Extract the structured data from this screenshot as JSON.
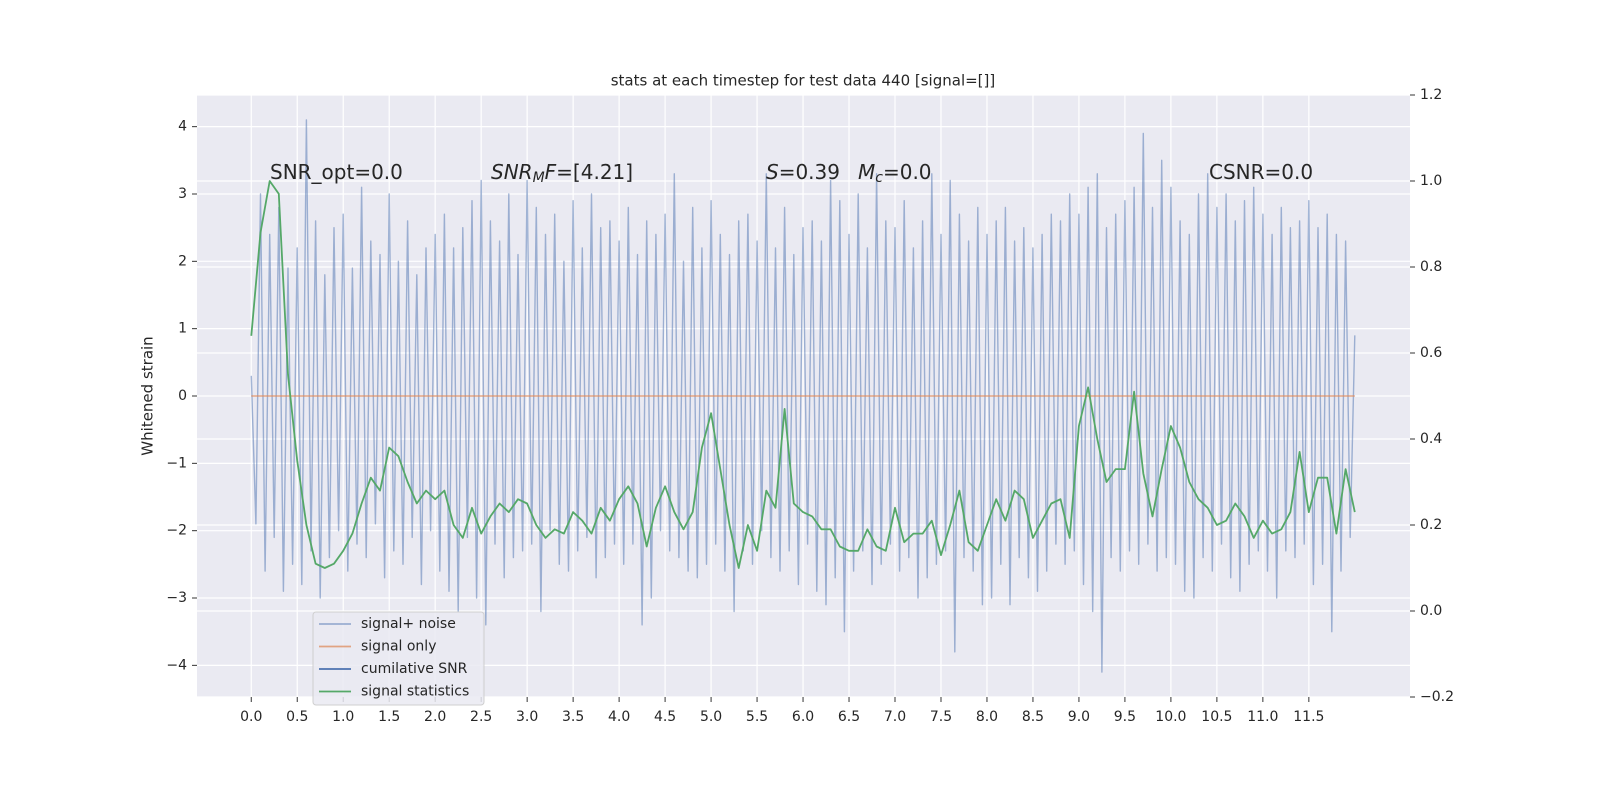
{
  "chart_data": {
    "type": "line",
    "title": "stats at each timestep for test data 440 [signal=[]]",
    "ylabel": "Whitened strain",
    "xlim": [
      -0.59,
      12.6
    ],
    "ylim": [
      -4.47,
      4.47
    ],
    "y2lim": [
      -0.2,
      1.2
    ],
    "xticks": [
      {
        "value": 0,
        "label": "0.0"
      },
      0.5,
      {
        "value": 1,
        "label": "1.0"
      },
      1.5,
      {
        "value": 2,
        "label": "2.0"
      },
      2.5,
      {
        "value": 3,
        "label": "3.0"
      },
      3.5,
      {
        "value": 4,
        "label": "4.0"
      },
      4.5,
      {
        "value": 5,
        "label": "5.0"
      },
      5.5,
      {
        "value": 6,
        "label": "6.0"
      },
      6.5,
      {
        "value": 7,
        "label": "7.0"
      },
      7.5,
      {
        "value": 8,
        "label": "8.0"
      },
      8.5,
      {
        "value": 9,
        "label": "9.0"
      },
      9.5,
      {
        "value": 10,
        "label": "10.0"
      },
      10.5,
      {
        "value": 11,
        "label": "11.0"
      },
      11.5
    ],
    "yticks": [
      {
        "value": -4,
        "label": "−4"
      },
      {
        "value": -3,
        "label": "−3"
      },
      {
        "value": -2,
        "label": "−2"
      },
      {
        "value": -1,
        "label": "−1"
      },
      0,
      1,
      2,
      3,
      4
    ],
    "y2ticks": [
      {
        "value": -0.2,
        "label": "−0.2"
      },
      {
        "value": 0,
        "label": "0.0"
      },
      0.2,
      0.4,
      0.6,
      0.8,
      {
        "value": 1,
        "label": "1.0"
      },
      1.2
    ],
    "grid": true,
    "legend": "lower left",
    "annotations": [
      {
        "parts": [
          {
            "text": "SNR_opt=0.0"
          }
        ]
      },
      {
        "parts": [
          {
            "text": "SNR",
            "style": "italic"
          },
          {
            "text": "M",
            "style": "italic-sub"
          },
          {
            "text": "F",
            "style": "italic"
          },
          {
            "text": "=[4.21]"
          }
        ]
      },
      {
        "parts": [
          {
            "text": "S",
            "style": "italic"
          },
          {
            "text": "=0.39"
          }
        ]
      },
      {
        "parts": [
          {
            "text": "M",
            "style": "italic"
          },
          {
            "text": "c",
            "style": "italic-sub"
          },
          {
            "text": "=0.0"
          }
        ]
      },
      {
        "parts": [
          {
            "text": "CSNR=0.0"
          }
        ]
      }
    ],
    "series": [
      {
        "name": "signal+ noise",
        "color": "#4c72b0",
        "alpha": 0.5,
        "x": [
          0,
          0.05,
          0.1,
          0.15,
          0.2,
          0.25,
          0.3,
          0.35,
          0.4,
          0.45,
          0.5,
          0.55,
          0.6,
          0.65,
          0.7,
          0.75,
          0.8,
          0.85,
          0.9,
          0.95,
          1,
          1.05,
          1.1,
          1.15,
          1.2,
          1.25,
          1.3,
          1.35,
          1.4,
          1.45,
          1.5,
          1.55,
          1.6,
          1.65,
          1.7,
          1.75,
          1.8,
          1.85,
          1.9,
          1.95,
          2,
          2.05,
          2.1,
          2.15,
          2.2,
          2.25,
          2.3,
          2.35,
          2.4,
          2.45,
          2.5,
          2.55,
          2.6,
          2.65,
          2.7,
          2.75,
          2.8,
          2.85,
          2.9,
          2.95,
          3,
          3.05,
          3.1,
          3.15,
          3.2,
          3.25,
          3.3,
          3.35,
          3.4,
          3.45,
          3.5,
          3.55,
          3.6,
          3.65,
          3.7,
          3.75,
          3.8,
          3.85,
          3.9,
          3.95,
          4,
          4.05,
          4.1,
          4.15,
          4.2,
          4.25,
          4.3,
          4.35,
          4.4,
          4.45,
          4.5,
          4.55,
          4.6,
          4.65,
          4.7,
          4.75,
          4.8,
          4.85,
          4.9,
          4.95,
          5,
          5.05,
          5.1,
          5.15,
          5.2,
          5.25,
          5.3,
          5.35,
          5.4,
          5.45,
          5.5,
          5.55,
          5.6,
          5.65,
          5.7,
          5.75,
          5.8,
          5.85,
          5.9,
          5.95,
          6,
          6.05,
          6.1,
          6.15,
          6.2,
          6.25,
          6.3,
          6.35,
          6.4,
          6.45,
          6.5,
          6.55,
          6.6,
          6.65,
          6.7,
          6.75,
          6.8,
          6.85,
          6.9,
          6.95,
          7,
          7.05,
          7.1,
          7.15,
          7.2,
          7.25,
          7.3,
          7.35,
          7.4,
          7.45,
          7.5,
          7.55,
          7.6,
          7.65,
          7.7,
          7.75,
          7.8,
          7.85,
          7.9,
          7.95,
          8,
          8.05,
          8.1,
          8.15,
          8.2,
          8.25,
          8.3,
          8.35,
          8.4,
          8.45,
          8.5,
          8.55,
          8.6,
          8.65,
          8.7,
          8.75,
          8.8,
          8.85,
          8.9,
          8.95,
          9,
          9.05,
          9.1,
          9.15,
          9.2,
          9.25,
          9.3,
          9.35,
          9.4,
          9.45,
          9.5,
          9.55,
          9.6,
          9.65,
          9.7,
          9.75,
          9.8,
          9.85,
          9.9,
          9.95,
          10,
          10.05,
          10.1,
          10.15,
          10.2,
          10.25,
          10.3,
          10.35,
          10.4,
          10.45,
          10.5,
          10.55,
          10.6,
          10.65,
          10.7,
          10.75,
          10.8,
          10.85,
          10.9,
          10.95,
          11,
          11.05,
          11.1,
          11.15,
          11.2,
          11.25,
          11.3,
          11.35,
          11.4,
          11.45,
          11.5,
          11.55,
          11.6,
          11.65,
          11.7,
          11.75,
          11.8,
          11.85,
          11.9,
          11.95,
          12
        ],
        "values": [
          0.3,
          -1.9,
          3.0,
          -2.6,
          2.4,
          -2.1,
          2.8,
          -2.9,
          1.9,
          -2.5,
          2.2,
          -2.8,
          4.1,
          -2.3,
          2.6,
          -3.0,
          1.8,
          -2.4,
          2.5,
          -2.0,
          2.7,
          -2.6,
          1.9,
          -2.2,
          3.1,
          -2.4,
          2.3,
          -1.9,
          2.1,
          -2.7,
          3.0,
          -2.3,
          2.0,
          -2.5,
          2.6,
          -2.1,
          1.8,
          -2.8,
          2.2,
          -2.0,
          2.4,
          -2.6,
          2.7,
          -2.9,
          2.2,
          -3.2,
          2.5,
          -2.1,
          2.9,
          -3.0,
          3.2,
          -3.4,
          2.6,
          -2.2,
          2.3,
          -2.7,
          3.0,
          -2.4,
          2.1,
          -2.3,
          3.2,
          -2.2,
          2.8,
          -3.2,
          2.4,
          -2.0,
          2.7,
          -2.5,
          2.0,
          -2.6,
          2.9,
          -2.3,
          2.2,
          -2.1,
          3.0,
          -2.7,
          2.5,
          -2.4,
          2.6,
          -2.2,
          2.3,
          -2.5,
          2.8,
          -2.2,
          2.1,
          -3.4,
          2.6,
          -3.0,
          2.4,
          -2.0,
          2.7,
          -2.3,
          3.3,
          -2.4,
          2.0,
          -2.6,
          2.8,
          -2.7,
          2.2,
          -2.5,
          2.9,
          -2.2,
          2.4,
          -2.6,
          2.1,
          -3.2,
          2.6,
          -2.3,
          2.7,
          -2.5,
          2.3,
          -2.0,
          3.3,
          -2.4,
          2.2,
          -2.6,
          2.8,
          -2.3,
          2.1,
          -2.8,
          2.5,
          -2.2,
          2.6,
          -2.9,
          2.3,
          -3.1,
          3.2,
          -2.7,
          2.9,
          -3.5,
          2.4,
          -2.6,
          3.0,
          -2.3,
          2.2,
          -2.8,
          3.3,
          -2.5,
          2.6,
          -2.2,
          2.5,
          -2.6,
          2.9,
          -2.4,
          2.2,
          -3.0,
          2.6,
          -2.7,
          3.3,
          -2.5,
          2.4,
          -2.3,
          3.2,
          -3.8,
          2.7,
          -2.4,
          2.3,
          -2.6,
          2.8,
          -3.1,
          2.4,
          -3.0,
          2.6,
          -2.5,
          2.8,
          -3.1,
          2.3,
          -2.4,
          2.5,
          -2.7,
          2.2,
          -2.9,
          2.4,
          -2.6,
          2.7,
          -2.2,
          2.6,
          -2.5,
          3.0,
          -2.3,
          2.7,
          -2.8,
          3.1,
          -3.2,
          3.3,
          -4.1,
          2.5,
          -2.4,
          2.7,
          -2.6,
          2.9,
          -2.3,
          3.1,
          -2.5,
          3.9,
          -2.2,
          2.8,
          -2.6,
          3.5,
          -2.4,
          3.1,
          -2.5,
          2.6,
          -2.9,
          2.4,
          -3.0,
          3.0,
          -2.4,
          3.3,
          -2.6,
          2.8,
          -2.2,
          3.0,
          -2.7,
          2.6,
          -2.9,
          2.9,
          -2.5,
          3.1,
          -2.3,
          2.7,
          -2.6,
          2.4,
          -3.0,
          2.8,
          -2.3,
          2.5,
          -2.4,
          2.6,
          -2.2,
          2.9,
          -2.8,
          2.5,
          -2.5,
          2.7,
          -3.5,
          2.4,
          -2.6,
          2.3,
          -2.1,
          0.9
        ]
      },
      {
        "name": "signal only",
        "color": "#dd8452",
        "alpha": 0.7,
        "x": [
          0,
          12
        ],
        "values": [
          0,
          0
        ]
      },
      {
        "name": "cumilative SNR",
        "color": "#4c72b0",
        "alpha": 1,
        "x": [],
        "values": []
      },
      {
        "name": "signal statistics",
        "color": "#55a868",
        "alpha": 1,
        "axis": "y2",
        "x": [
          0,
          0.1,
          0.2,
          0.3,
          0.4,
          0.5,
          0.6,
          0.7,
          0.8,
          0.9,
          1,
          1.1,
          1.2,
          1.3,
          1.4,
          1.5,
          1.6,
          1.7,
          1.8,
          1.9,
          2,
          2.1,
          2.2,
          2.3,
          2.4,
          2.5,
          2.6,
          2.7,
          2.8,
          2.9,
          3,
          3.1,
          3.2,
          3.3,
          3.4,
          3.5,
          3.6,
          3.7,
          3.8,
          3.9,
          4,
          4.1,
          4.2,
          4.3,
          4.4,
          4.5,
          4.6,
          4.7,
          4.8,
          4.9,
          5,
          5.1,
          5.2,
          5.3,
          5.4,
          5.5,
          5.6,
          5.7,
          5.8,
          5.9,
          6,
          6.1,
          6.2,
          6.3,
          6.4,
          6.5,
          6.6,
          6.7,
          6.8,
          6.9,
          7,
          7.1,
          7.2,
          7.3,
          7.4,
          7.5,
          7.6,
          7.7,
          7.8,
          7.9,
          8,
          8.1,
          8.2,
          8.3,
          8.4,
          8.5,
          8.6,
          8.7,
          8.8,
          8.9,
          9,
          9.1,
          9.2,
          9.3,
          9.4,
          9.5,
          9.6,
          9.7,
          9.8,
          9.9,
          10,
          10.1,
          10.2,
          10.3,
          10.4,
          10.5,
          10.6,
          10.7,
          10.8,
          10.9,
          11,
          11.1,
          11.2,
          11.3,
          11.4,
          11.5,
          11.6,
          11.7,
          11.8,
          11.9,
          12
        ],
        "values": [
          0.64,
          0.88,
          1.0,
          0.97,
          0.55,
          0.35,
          0.2,
          0.11,
          0.1,
          0.11,
          0.14,
          0.18,
          0.25,
          0.31,
          0.28,
          0.38,
          0.36,
          0.3,
          0.25,
          0.28,
          0.26,
          0.28,
          0.2,
          0.17,
          0.24,
          0.18,
          0.22,
          0.25,
          0.23,
          0.26,
          0.25,
          0.2,
          0.17,
          0.19,
          0.18,
          0.23,
          0.21,
          0.18,
          0.24,
          0.21,
          0.26,
          0.29,
          0.25,
          0.15,
          0.24,
          0.29,
          0.23,
          0.19,
          0.23,
          0.38,
          0.46,
          0.33,
          0.2,
          0.1,
          0.2,
          0.14,
          0.28,
          0.24,
          0.47,
          0.25,
          0.23,
          0.22,
          0.19,
          0.19,
          0.15,
          0.14,
          0.14,
          0.19,
          0.15,
          0.14,
          0.24,
          0.16,
          0.18,
          0.18,
          0.21,
          0.13,
          0.2,
          0.28,
          0.16,
          0.14,
          0.2,
          0.26,
          0.21,
          0.28,
          0.26,
          0.17,
          0.21,
          0.25,
          0.26,
          0.17,
          0.43,
          0.52,
          0.4,
          0.3,
          0.33,
          0.33,
          0.51,
          0.32,
          0.22,
          0.33,
          0.43,
          0.38,
          0.3,
          0.26,
          0.24,
          0.2,
          0.21,
          0.25,
          0.22,
          0.17,
          0.21,
          0.18,
          0.19,
          0.23,
          0.37,
          0.23,
          0.31,
          0.31,
          0.18,
          0.33,
          0.23
        ]
      }
    ]
  }
}
